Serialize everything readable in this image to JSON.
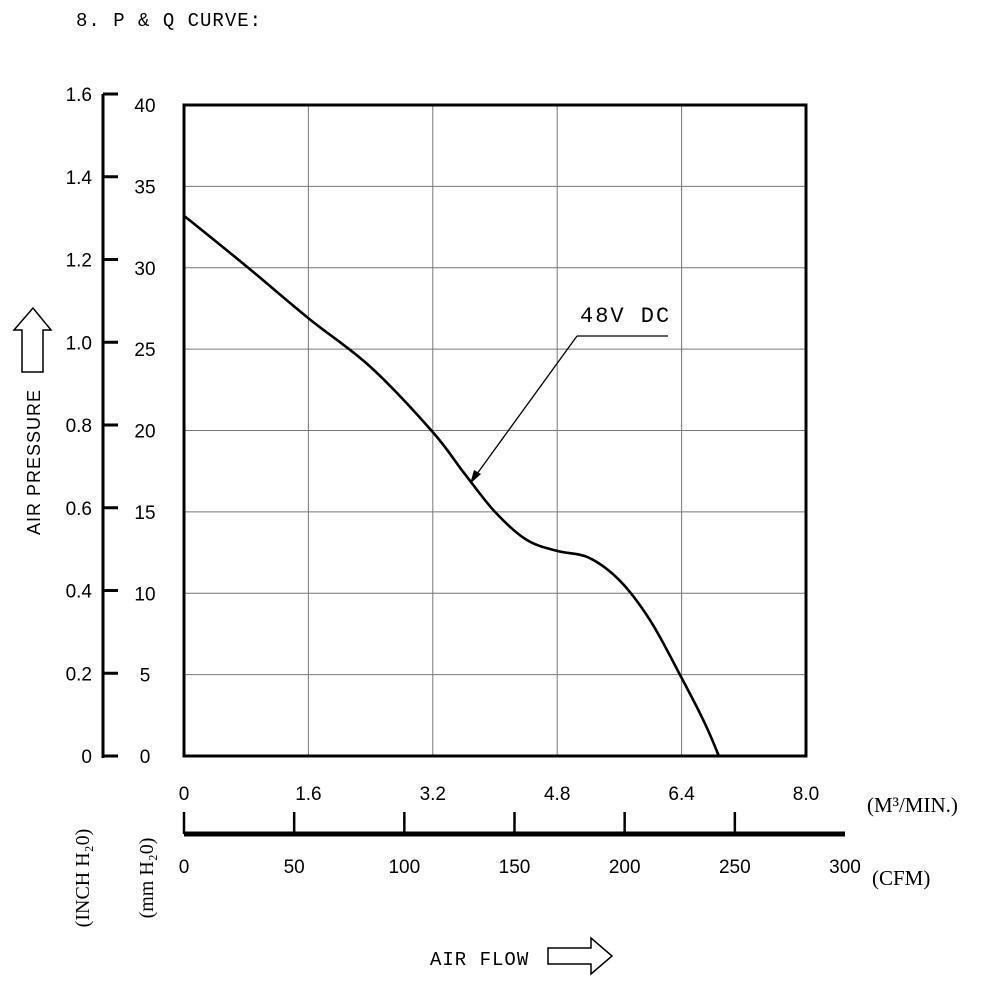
{
  "chart_data": {
    "type": "line",
    "title": "8. P & Q CURVE:",
    "xlabel": "AIR FLOW",
    "ylabel": "AIR PRESSURE",
    "x_axes": [
      {
        "unit_label": "(M³/MIN.)",
        "ticks": [
          "0",
          "1.6",
          "3.2",
          "4.8",
          "6.4",
          "8.0"
        ],
        "range": [
          0,
          8.0
        ]
      },
      {
        "unit_label": "(CFM)",
        "ticks": [
          "0",
          "50",
          "100",
          "150",
          "200",
          "250",
          "300"
        ],
        "range": [
          0,
          300
        ]
      }
    ],
    "y_axes": [
      {
        "unit_label": "(INCH H₂0)",
        "ticks": [
          "0",
          "0.2",
          "0.4",
          "0.6",
          "0.8",
          "1.0",
          "1.2",
          "1.4",
          "1.6"
        ],
        "range": [
          0,
          1.6
        ]
      },
      {
        "unit_label": "(mm H₂0)",
        "ticks": [
          "0",
          "5",
          "10",
          "15",
          "20",
          "25",
          "30",
          "35",
          "40"
        ],
        "range": [
          0,
          40
        ]
      }
    ],
    "grid": true,
    "series": [
      {
        "name": "48V DC",
        "x_unit": "M³/MIN.",
        "y_unit": "mm H₂0",
        "x": [
          0,
          0.8,
          1.6,
          2.4,
          3.2,
          3.6,
          4.0,
          4.4,
          4.8,
          5.2,
          5.6,
          6.0,
          6.4,
          6.7,
          6.88
        ],
        "y": [
          33.2,
          30.1,
          26.9,
          23.9,
          19.9,
          17.4,
          15.0,
          13.3,
          12.6,
          12.2,
          10.8,
          8.3,
          4.8,
          2.0,
          0
        ]
      }
    ],
    "annotation": {
      "text": "48V DC"
    }
  }
}
